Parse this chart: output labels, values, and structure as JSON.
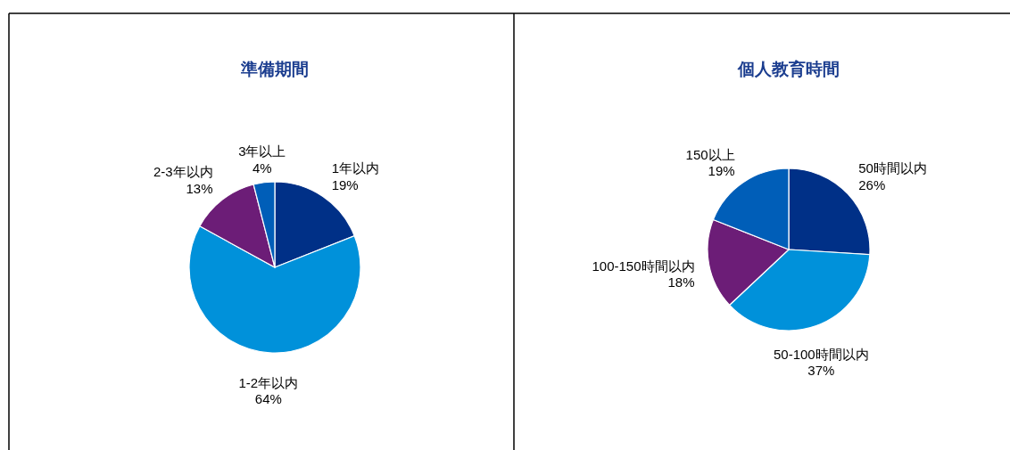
{
  "chart_data": [
    {
      "type": "pie",
      "title": "準備期間",
      "categories": [
        "1年以内",
        "1-2年以内",
        "2-3年以内",
        "3年以上"
      ],
      "values": [
        19,
        64,
        13,
        4
      ],
      "value_labels": [
        "19%",
        "64%",
        "13%",
        "4%"
      ],
      "colors": [
        "#003087",
        "#0091da",
        "#6c1d77",
        "#005eb8"
      ]
    },
    {
      "type": "pie",
      "title": "個人教育時間",
      "categories": [
        "50時間以内",
        "50-100時間以内",
        "100-150時間以内",
        "150以上"
      ],
      "values": [
        26,
        37,
        18,
        19
      ],
      "value_labels": [
        "26%",
        "37%",
        "18%",
        "19%"
      ],
      "colors": [
        "#003087",
        "#0091da",
        "#6c1d77",
        "#005eb8"
      ]
    }
  ]
}
